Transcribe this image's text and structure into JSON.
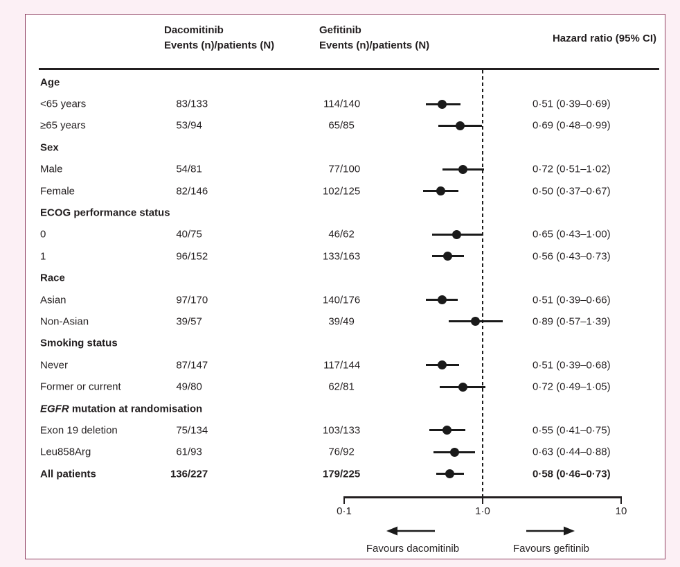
{
  "figure": {
    "columns": {
      "dacomitinib_header": "Dacomitinib\nEvents (n)/patients (N)",
      "gefitinib_header": "Gefitinib\nEvents (n)/patients (N)",
      "hazard_header": "Hazard ratio (95% CI)"
    },
    "axis": {
      "tick_labels": [
        "0·1",
        "1·0",
        "10"
      ],
      "left_label": "Favours dacomitinib",
      "right_label": "Favours gefitinib"
    },
    "colors": {
      "border": "#8f3f60",
      "page_background": "#fcf0f5",
      "marker": "#1a1a1a",
      "text": "#231f20"
    }
  },
  "chart_data": {
    "type": "forest",
    "scale": "log10",
    "xlim": [
      0.1,
      10
    ],
    "x_ticks": [
      0.1,
      1.0,
      10
    ],
    "reference_line": 1.0,
    "grid": false,
    "rows": [
      {
        "kind": "section",
        "label": "Age"
      },
      {
        "kind": "data",
        "label": "<65 years",
        "dacomitinib": "83/133",
        "gefitinib": "114/140",
        "hr": 0.51,
        "lo": 0.39,
        "hi": 0.69,
        "hr_text": "0·51 (0·39–0·69)"
      },
      {
        "kind": "data",
        "label": "≥65 years",
        "dacomitinib": "53/94",
        "gefitinib": "65/85",
        "hr": 0.69,
        "lo": 0.48,
        "hi": 0.99,
        "hr_text": "0·69 (0·48–0·99)"
      },
      {
        "kind": "section",
        "label": "Sex"
      },
      {
        "kind": "data",
        "label": "Male",
        "dacomitinib": "54/81",
        "gefitinib": "77/100",
        "hr": 0.72,
        "lo": 0.51,
        "hi": 1.02,
        "hr_text": "0·72 (0·51–1·02)"
      },
      {
        "kind": "data",
        "label": "Female",
        "dacomitinib": "82/146",
        "gefitinib": "102/125",
        "hr": 0.5,
        "lo": 0.37,
        "hi": 0.67,
        "hr_text": "0·50 (0·37–0·67)"
      },
      {
        "kind": "section",
        "label": "ECOG performance status"
      },
      {
        "kind": "data",
        "label": "0",
        "dacomitinib": "40/75",
        "gefitinib": "46/62",
        "hr": 0.65,
        "lo": 0.43,
        "hi": 1.0,
        "hr_text": "0·65 (0·43–1·00)"
      },
      {
        "kind": "data",
        "label": "1",
        "dacomitinib": "96/152",
        "gefitinib": "133/163",
        "hr": 0.56,
        "lo": 0.43,
        "hi": 0.73,
        "hr_text": "0·56 (0·43–0·73)"
      },
      {
        "kind": "section",
        "label": "Race"
      },
      {
        "kind": "data",
        "label": "Asian",
        "dacomitinib": "97/170",
        "gefitinib": "140/176",
        "hr": 0.51,
        "lo": 0.39,
        "hi": 0.66,
        "hr_text": "0·51 (0·39–0·66)"
      },
      {
        "kind": "data",
        "label": "Non-Asian",
        "dacomitinib": "39/57",
        "gefitinib": "39/49",
        "hr": 0.89,
        "lo": 0.57,
        "hi": 1.39,
        "hr_text": "0·89 (0·57–1·39)"
      },
      {
        "kind": "section",
        "label": "Smoking status"
      },
      {
        "kind": "data",
        "label": "Never",
        "dacomitinib": "87/147",
        "gefitinib": "117/144",
        "hr": 0.51,
        "lo": 0.39,
        "hi": 0.68,
        "hr_text": "0·51 (0·39–0·68)"
      },
      {
        "kind": "data",
        "label": "Former or current",
        "dacomitinib": "49/80",
        "gefitinib": "62/81",
        "hr": 0.72,
        "lo": 0.49,
        "hi": 1.05,
        "hr_text": "0·72 (0·49–1·05)"
      },
      {
        "kind": "section",
        "label": "EGFR mutation at randomisation",
        "italic_prefix": "EGFR"
      },
      {
        "kind": "data",
        "label": "Exon 19 deletion",
        "dacomitinib": "75/134",
        "gefitinib": "103/133",
        "hr": 0.55,
        "lo": 0.41,
        "hi": 0.75,
        "hr_text": "0·55 (0·41–0·75)"
      },
      {
        "kind": "data",
        "label": "Leu858Arg",
        "dacomitinib": "61/93",
        "gefitinib": "76/92",
        "hr": 0.63,
        "lo": 0.44,
        "hi": 0.88,
        "hr_text": "0·63 (0·44–0·88)"
      },
      {
        "kind": "data",
        "label": "All patients",
        "bold": true,
        "dacomitinib": "136/227",
        "gefitinib": "179/225",
        "hr": 0.58,
        "lo": 0.46,
        "hi": 0.73,
        "hr_text": "0·58 (0·46–0·73)"
      }
    ]
  }
}
